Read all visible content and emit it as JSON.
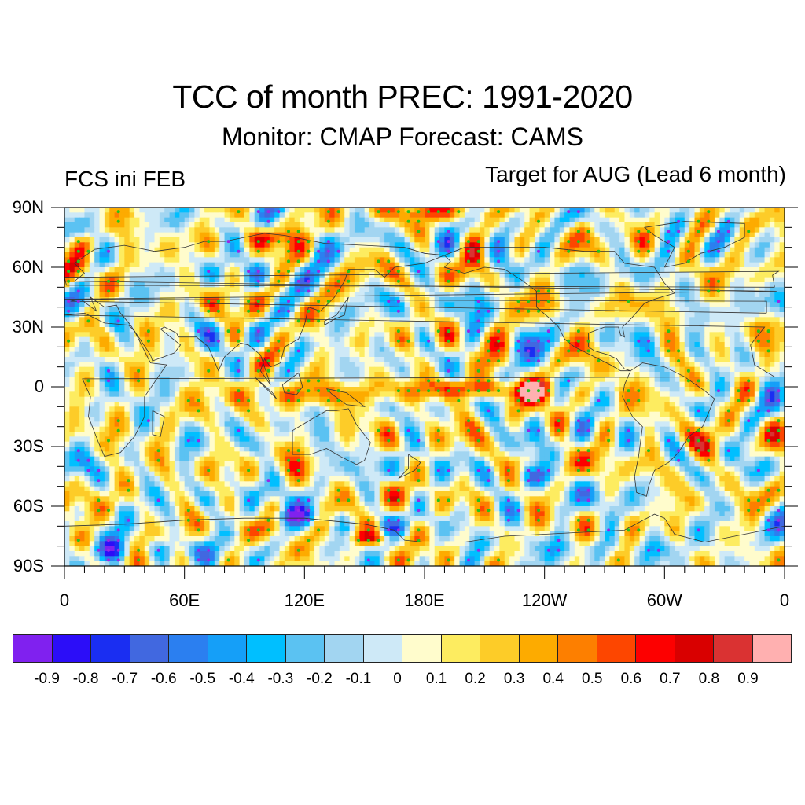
{
  "header": {
    "title": "TCC of month PREC: 1991-2020",
    "subtitle": "Monitor: CMAP   Forecast: CAMS",
    "left_label": "FCS ini FEB",
    "right_label": "Target for AUG (Lead 6 month)"
  },
  "chart_data": {
    "type": "heatmap",
    "title": "TCC of month PREC: 1991-2020",
    "subtitle": "Monitor: CMAP   Forecast: CAMS",
    "left_annotation": "FCS ini FEB",
    "right_annotation": "Target for AUG (Lead 6 month)",
    "projection": "cylindrical equidistant, centered 180E",
    "x_range": [
      0,
      360
    ],
    "y_range": [
      -90,
      90
    ],
    "x_ticks": [
      {
        "value": 0,
        "label": "0"
      },
      {
        "value": 60,
        "label": "60E"
      },
      {
        "value": 120,
        "label": "120E"
      },
      {
        "value": 180,
        "label": "180E"
      },
      {
        "value": 240,
        "label": "120W"
      },
      {
        "value": 300,
        "label": "60W"
      },
      {
        "value": 360,
        "label": "0"
      }
    ],
    "y_ticks": [
      {
        "value": 90,
        "label": "90N"
      },
      {
        "value": 60,
        "label": "60N"
      },
      {
        "value": 30,
        "label": "30N"
      },
      {
        "value": 0,
        "label": "0"
      },
      {
        "value": -30,
        "label": "30S"
      },
      {
        "value": -60,
        "label": "60S"
      },
      {
        "value": -90,
        "label": "90S"
      }
    ],
    "minor_tick_step_deg": 10,
    "colorbar": {
      "levels": [
        -0.9,
        -0.8,
        -0.7,
        -0.6,
        -0.5,
        -0.4,
        -0.3,
        -0.2,
        -0.1,
        0,
        0.1,
        0.2,
        0.3,
        0.4,
        0.5,
        0.6,
        0.7,
        0.8,
        0.9
      ],
      "labels": [
        "-0.9",
        "-0.8",
        "-0.7",
        "-0.6",
        "-0.5",
        "-0.4",
        "-0.3",
        "-0.2",
        "-0.1",
        "0",
        "0.1",
        "0.2",
        "0.3",
        "0.4",
        "0.5",
        "0.6",
        "0.7",
        "0.8",
        "0.9"
      ],
      "colors": [
        "#8021ef",
        "#2c0df8",
        "#1a2ef2",
        "#4168e0",
        "#2b7ff0",
        "#159ff8",
        "#00bfff",
        "#5bc2f2",
        "#a2d5f1",
        "#cee9f7",
        "#fffccc",
        "#fdec60",
        "#fdcc28",
        "#fdab00",
        "#fd7f00",
        "#fd4600",
        "#fd0000",
        "#d90000",
        "#da3232",
        "#ffb0b0"
      ],
      "placement": "bottom"
    },
    "significance_markers": {
      "positive_color": "#22c41e",
      "negative_color": "#9a27e6"
    },
    "features": [
      {
        "region": "Equatorial central/east Pacific (160E-100W, 10S-5N)",
        "value": 0.75,
        "significant": true
      },
      {
        "region": "Equatorial western Pacific / Maritime Continent (80E-160E, 0-15S)",
        "value": 0.45,
        "significant": true
      },
      {
        "region": "Arctic near 180E (80N-90N)",
        "value": 0.4,
        "significant": true
      },
      {
        "region": "South Pacific (130W-100W, 40S-50S)",
        "value": -0.55,
        "significant": true
      },
      {
        "region": "Southern Ocean south of Australia (90E-150E, 60S-70S)",
        "value": -0.5,
        "significant": true
      },
      {
        "region": "Antarctic coast (140E-170E, 70S-75S)",
        "value": 0.45,
        "significant": true
      },
      {
        "region": "South America east (60W-40W, 20S-30S)",
        "value": 0.45,
        "significant": true
      },
      {
        "region": "North Atlantic high latitude (0-15E, 70N-75N)",
        "value": 0.55,
        "significant": true
      }
    ]
  }
}
